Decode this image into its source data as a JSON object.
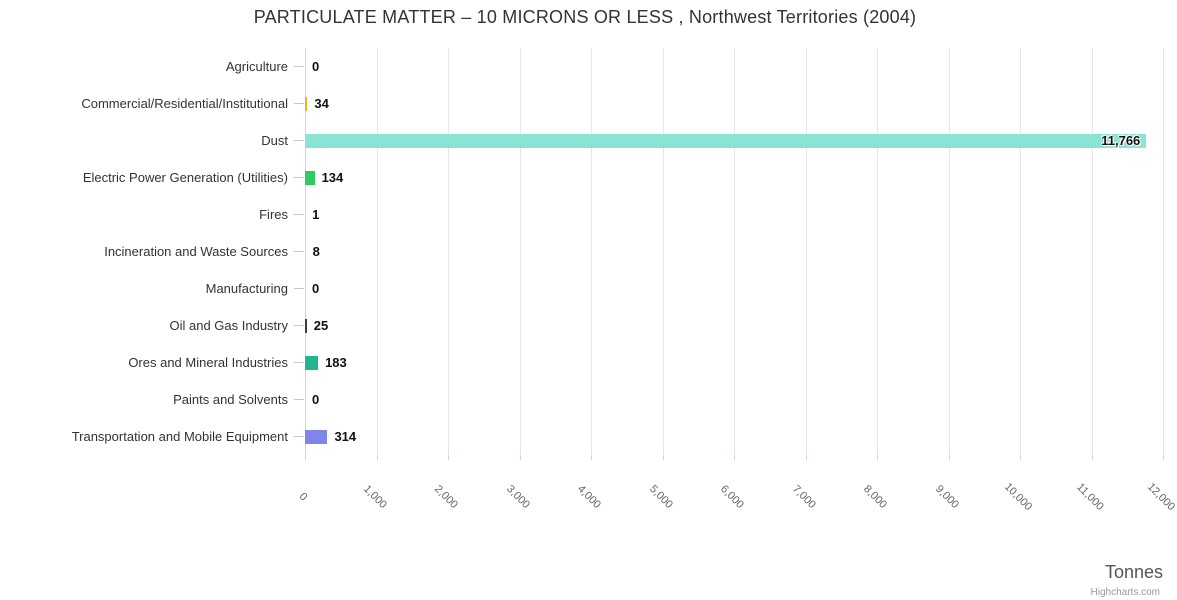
{
  "title": "PARTICULATE MATTER – 10 MICRONS OR LESS , Northwest Territories (2004)",
  "credit": "Highcharts.com",
  "colors": {
    "grid_line": "#e6e6e6",
    "axis_line": "#ccd6eb",
    "tick_mark": "#c3c6cc",
    "title_text": "#333333",
    "category_text": "#333333",
    "value_text": "#111111",
    "xtick_text": "#666666",
    "axis_title_text": "#555555",
    "credit_text": "#999999"
  },
  "chart_data": {
    "type": "bar",
    "orientation": "horizontal",
    "title": "PARTICULATE MATTER – 10 MICRONS OR LESS , Northwest Territories (2004)",
    "categories": [
      "Agriculture",
      "Commercial/Residential/Institutional",
      "Dust",
      "Electric Power Generation (Utilities)",
      "Fires",
      "Incineration and Waste Sources",
      "Manufacturing",
      "Oil and Gas Industry",
      "Ores and Mineral Industries",
      "Paints and Solvents",
      "Transportation and Mobile Equipment"
    ],
    "values": [
      0,
      34,
      11766,
      134,
      1,
      8,
      0,
      25,
      183,
      0,
      314
    ],
    "value_labels": [
      "0",
      "34",
      "11,766",
      "134",
      "1",
      "8",
      "0",
      "25",
      "183",
      "0",
      "314"
    ],
    "bar_colors": [
      null,
      "#edb320",
      "#8ae4d6",
      "#2ecc5e",
      null,
      null,
      null,
      "#3b3b40",
      "#22b690",
      null,
      "#8085e9"
    ],
    "xlabel": "Tonnes",
    "ylabel": "",
    "xlim": [
      0,
      12000
    ],
    "x_ticks": [
      0,
      1000,
      2000,
      3000,
      4000,
      5000,
      6000,
      7000,
      8000,
      9000,
      10000,
      11000,
      12000
    ],
    "x_tick_labels": [
      "0",
      "1,000",
      "2,000",
      "3,000",
      "4,000",
      "5,000",
      "6,000",
      "7,000",
      "8,000",
      "9,000",
      "10,000",
      "11,000",
      "12,000"
    ],
    "grid": true,
    "legend": false
  }
}
